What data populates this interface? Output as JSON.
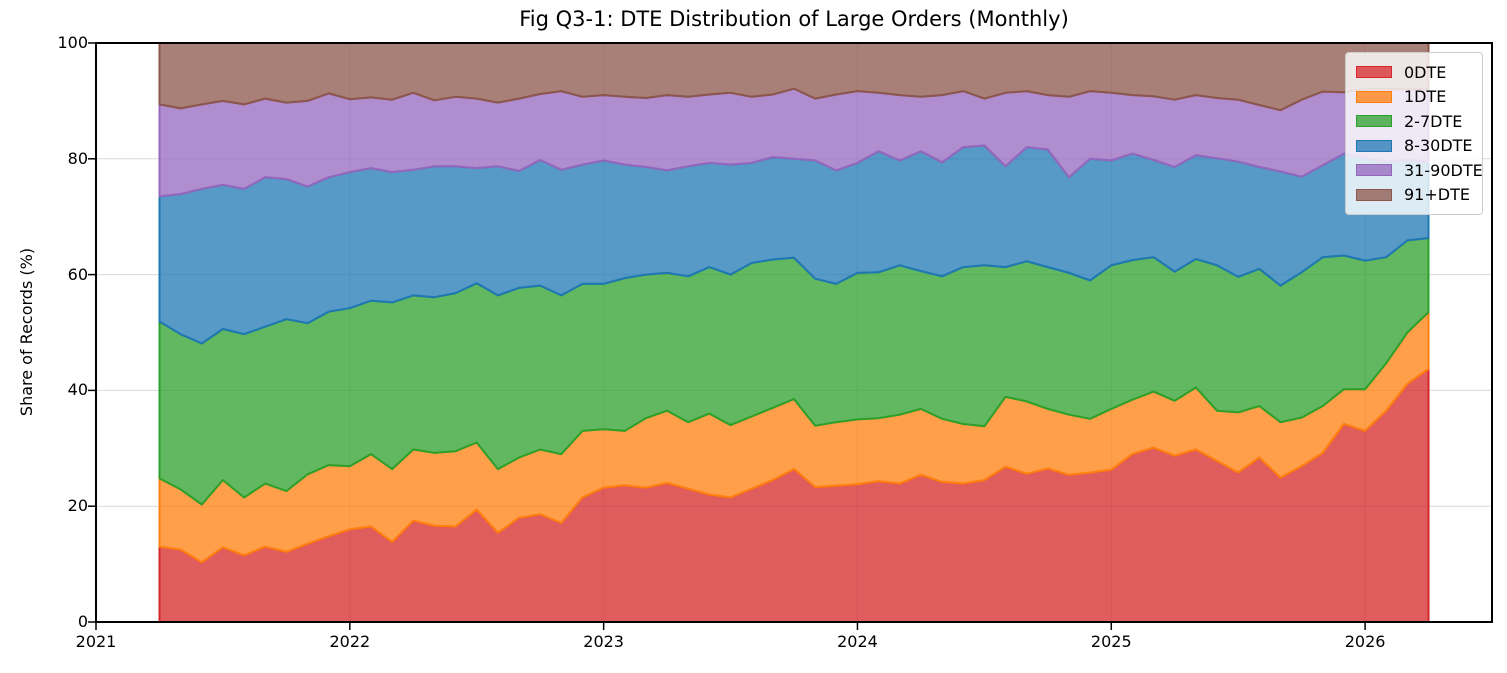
{
  "title": "Fig Q3-1: DTE Distribution of Large Orders (Monthly)",
  "ylabel": "Share of Records (%)",
  "legend": {
    "position": "upper right",
    "labels": [
      "0DTE",
      "1DTE",
      "2-7DTE",
      "8-30DTE",
      "31-90DTE",
      "91+DTE"
    ]
  },
  "chart_data": {
    "type": "area",
    "stacked": true,
    "unit": "percent",
    "title": "Fig Q3-1: DTE Distribution of Large Orders (Monthly)",
    "xlabel": "",
    "ylabel": "Share of Records (%)",
    "xlim": [
      2021.0,
      2026.5
    ],
    "ylim": [
      0,
      100
    ],
    "xticks": [
      2021,
      2022,
      2023,
      2024,
      2025,
      2026
    ],
    "yticks": [
      0,
      20,
      40,
      60,
      80,
      100
    ],
    "grid": true,
    "grid_color": "#d9d9d9",
    "categories": [
      "2021-04",
      "2021-05",
      "2021-06",
      "2021-07",
      "2021-08",
      "2021-09",
      "2021-10",
      "2021-11",
      "2021-12",
      "2022-01",
      "2022-02",
      "2022-03",
      "2022-04",
      "2022-05",
      "2022-06",
      "2022-07",
      "2022-08",
      "2022-09",
      "2022-10",
      "2022-11",
      "2022-12",
      "2023-01",
      "2023-02",
      "2023-03",
      "2023-04",
      "2023-05",
      "2023-06",
      "2023-07",
      "2023-08",
      "2023-09",
      "2023-10",
      "2023-11",
      "2023-12",
      "2024-01",
      "2024-02",
      "2024-03",
      "2024-04",
      "2024-05",
      "2024-06",
      "2024-07",
      "2024-08",
      "2024-09",
      "2024-10",
      "2024-11",
      "2024-12",
      "2025-01",
      "2025-02",
      "2025-03",
      "2025-04",
      "2025-05",
      "2025-06",
      "2025-07",
      "2025-08",
      "2025-09",
      "2025-10",
      "2025-11",
      "2025-12",
      "2026-01",
      "2026-02",
      "2026-03",
      "2026-04"
    ],
    "x_decimal_years_start": 2021.25,
    "x_step_years": 0.0833333,
    "series": [
      {
        "name": "0DTE",
        "color": "#d62728",
        "fill_alpha": 0.75,
        "values": [
          13.0,
          12.5,
          10.3,
          12.9,
          11.5,
          13.0,
          12.1,
          13.5,
          14.8,
          16.0,
          16.5,
          13.8,
          17.5,
          16.6,
          16.5,
          19.4,
          15.4,
          18.0,
          18.6,
          17.1,
          21.5,
          23.2,
          23.6,
          23.2,
          24.0,
          23.0,
          22.0,
          21.5,
          23.0,
          24.5,
          26.4,
          23.3,
          23.5,
          23.8,
          24.3,
          23.9,
          25.4,
          24.2,
          23.9,
          24.5,
          26.8,
          25.6,
          26.5,
          25.4,
          25.8,
          26.3,
          29.0,
          30.1,
          28.7,
          29.8,
          27.8,
          25.8,
          28.4,
          24.9,
          26.9,
          29.2,
          34.2,
          33.0,
          36.5,
          41.1,
          43.7
        ]
      },
      {
        "name": "1DTE",
        "color": "#ff7f0e",
        "fill_alpha": 0.75,
        "values": [
          11.8,
          10.4,
          10.0,
          11.6,
          10.0,
          10.9,
          10.5,
          12.0,
          12.3,
          10.9,
          12.5,
          12.6,
          12.3,
          12.6,
          13.0,
          11.6,
          11.0,
          10.4,
          11.2,
          11.9,
          11.5,
          10.1,
          9.4,
          12.0,
          12.5,
          11.5,
          14.0,
          12.5,
          12.5,
          12.5,
          12.1,
          10.6,
          11.0,
          11.2,
          10.9,
          11.9,
          11.4,
          10.9,
          10.3,
          9.3,
          12.1,
          12.5,
          10.3,
          10.4,
          9.3,
          10.5,
          9.4,
          9.7,
          9.5,
          10.7,
          8.7,
          10.4,
          8.9,
          9.6,
          8.4,
          8.1,
          6.0,
          7.2,
          8.2,
          8.9,
          9.8
        ]
      },
      {
        "name": "2-7DTE",
        "color": "#2ca02c",
        "fill_alpha": 0.75,
        "values": [
          27.1,
          26.8,
          27.8,
          26.1,
          28.2,
          27.1,
          29.7,
          26.1,
          26.5,
          27.3,
          26.5,
          28.8,
          26.6,
          26.9,
          27.3,
          27.5,
          30.0,
          29.3,
          28.3,
          27.4,
          25.4,
          25.1,
          26.4,
          24.8,
          23.8,
          25.2,
          25.3,
          26.0,
          26.5,
          25.6,
          24.4,
          25.4,
          23.9,
          25.3,
          25.2,
          25.8,
          23.8,
          24.6,
          27.1,
          27.8,
          22.4,
          24.2,
          24.5,
          24.5,
          23.9,
          24.8,
          24.1,
          23.2,
          22.3,
          22.2,
          25.1,
          23.4,
          23.7,
          23.6,
          25.1,
          25.7,
          23.1,
          22.2,
          18.3,
          15.9,
          12.8
        ]
      },
      {
        "name": "8-30DTE",
        "color": "#1f77b4",
        "fill_alpha": 0.75,
        "values": [
          21.6,
          24.2,
          26.7,
          24.9,
          25.1,
          25.8,
          24.2,
          23.6,
          23.2,
          23.5,
          22.9,
          22.5,
          21.7,
          22.6,
          21.9,
          19.9,
          22.3,
          20.2,
          21.7,
          21.7,
          20.6,
          21.3,
          19.6,
          18.6,
          17.7,
          19.0,
          18.0,
          19.0,
          17.3,
          17.7,
          17.1,
          20.4,
          19.6,
          19.0,
          20.9,
          18.1,
          20.7,
          19.7,
          20.7,
          20.7,
          17.4,
          19.7,
          20.3,
          16.5,
          21.0,
          18.1,
          18.4,
          16.8,
          18.1,
          17.9,
          18.5,
          19.9,
          17.6,
          19.7,
          16.5,
          15.9,
          17.6,
          17.7,
          16.5,
          13.9,
          13.2
        ]
      },
      {
        "name": "31-90DTE",
        "color": "#9467bd",
        "fill_alpha": 0.75,
        "values": [
          15.9,
          14.8,
          14.6,
          14.5,
          14.6,
          13.6,
          13.2,
          14.8,
          14.5,
          12.6,
          12.2,
          12.5,
          13.3,
          11.4,
          12.0,
          12.0,
          11.0,
          12.5,
          11.4,
          13.6,
          11.7,
          11.3,
          11.7,
          11.9,
          13.0,
          12.0,
          11.8,
          12.4,
          11.4,
          10.8,
          12.1,
          10.7,
          13.1,
          12.4,
          10.1,
          11.3,
          9.4,
          11.6,
          9.7,
          8.1,
          12.7,
          9.7,
          9.4,
          13.9,
          11.7,
          11.7,
          10.1,
          11.0,
          11.6,
          10.4,
          10.4,
          10.7,
          10.7,
          10.6,
          13.3,
          12.7,
          10.6,
          11.9,
          12.5,
          12.2,
          12.5
        ]
      },
      {
        "name": "91+DTE",
        "color": "#8c564b",
        "fill_alpha": 0.75,
        "values": [
          10.6,
          11.3,
          10.6,
          10.0,
          10.6,
          9.6,
          10.3,
          10.0,
          8.7,
          9.7,
          9.4,
          9.8,
          8.6,
          9.9,
          9.3,
          9.6,
          10.3,
          9.6,
          8.8,
          8.3,
          9.3,
          9.0,
          9.3,
          9.5,
          9.0,
          9.3,
          8.9,
          8.6,
          9.3,
          8.9,
          7.9,
          9.6,
          8.9,
          8.3,
          8.6,
          9.0,
          9.3,
          9.0,
          8.3,
          9.6,
          8.6,
          8.3,
          9.0,
          9.3,
          8.3,
          8.6,
          9.0,
          9.2,
          9.8,
          9.0,
          9.5,
          9.8,
          10.7,
          11.6,
          9.8,
          8.4,
          8.5,
          8.0,
          8.0,
          8.0,
          8.0
        ]
      }
    ]
  }
}
